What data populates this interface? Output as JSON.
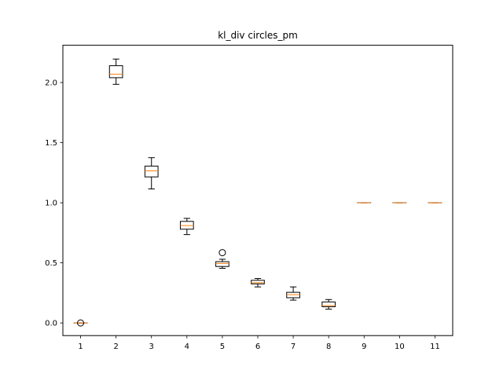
{
  "chart_data": {
    "type": "boxplot",
    "title": "kl_div circles_pm",
    "xlabel": "",
    "ylabel": "",
    "categories": [
      "1",
      "2",
      "3",
      "4",
      "5",
      "6",
      "7",
      "8",
      "9",
      "10",
      "11"
    ],
    "ylim": [
      -0.105,
      2.31
    ],
    "yticks": [
      0.0,
      0.5,
      1.0,
      1.5,
      2.0
    ],
    "ytick_labels": [
      "0.0",
      "0.5",
      "1.0",
      "1.5",
      "2.0"
    ],
    "grid": false,
    "boxes": [
      {
        "category": "1",
        "whislo": 0.0,
        "q1": 0.0,
        "med": 0.0,
        "q3": 0.0,
        "whishi": 0.0,
        "fliers": [
          0.0
        ]
      },
      {
        "category": "2",
        "whislo": 1.985,
        "q1": 2.04,
        "med": 2.07,
        "q3": 2.14,
        "whishi": 2.195,
        "fliers": []
      },
      {
        "category": "3",
        "whislo": 1.115,
        "q1": 1.215,
        "med": 1.265,
        "q3": 1.305,
        "whishi": 1.375,
        "fliers": []
      },
      {
        "category": "4",
        "whislo": 0.735,
        "q1": 0.78,
        "med": 0.81,
        "q3": 0.845,
        "whishi": 0.87,
        "fliers": []
      },
      {
        "category": "5",
        "whislo": 0.455,
        "q1": 0.47,
        "med": 0.495,
        "q3": 0.51,
        "whishi": 0.53,
        "fliers": [
          0.585
        ]
      },
      {
        "category": "6",
        "whislo": 0.3,
        "q1": 0.325,
        "med": 0.335,
        "q3": 0.355,
        "whishi": 0.37,
        "fliers": []
      },
      {
        "category": "7",
        "whislo": 0.19,
        "q1": 0.21,
        "med": 0.235,
        "q3": 0.255,
        "whishi": 0.3,
        "fliers": []
      },
      {
        "category": "8",
        "whislo": 0.115,
        "q1": 0.135,
        "med": 0.145,
        "q3": 0.175,
        "whishi": 0.195,
        "fliers": []
      },
      {
        "category": "9",
        "whislo": 1.0,
        "q1": 1.0,
        "med": 1.0,
        "q3": 1.0,
        "whishi": 1.0,
        "fliers": []
      },
      {
        "category": "10",
        "whislo": 1.0,
        "q1": 1.0,
        "med": 1.0,
        "q3": 1.0,
        "whishi": 1.0,
        "fliers": []
      },
      {
        "category": "11",
        "whislo": 1.0,
        "q1": 1.0,
        "med": 1.0,
        "q3": 1.0,
        "whishi": 1.0,
        "fliers": []
      }
    ],
    "colors": {
      "box": "#000000",
      "median": "#ff7f0e",
      "flier": "#000000",
      "background": "#ffffff"
    }
  }
}
